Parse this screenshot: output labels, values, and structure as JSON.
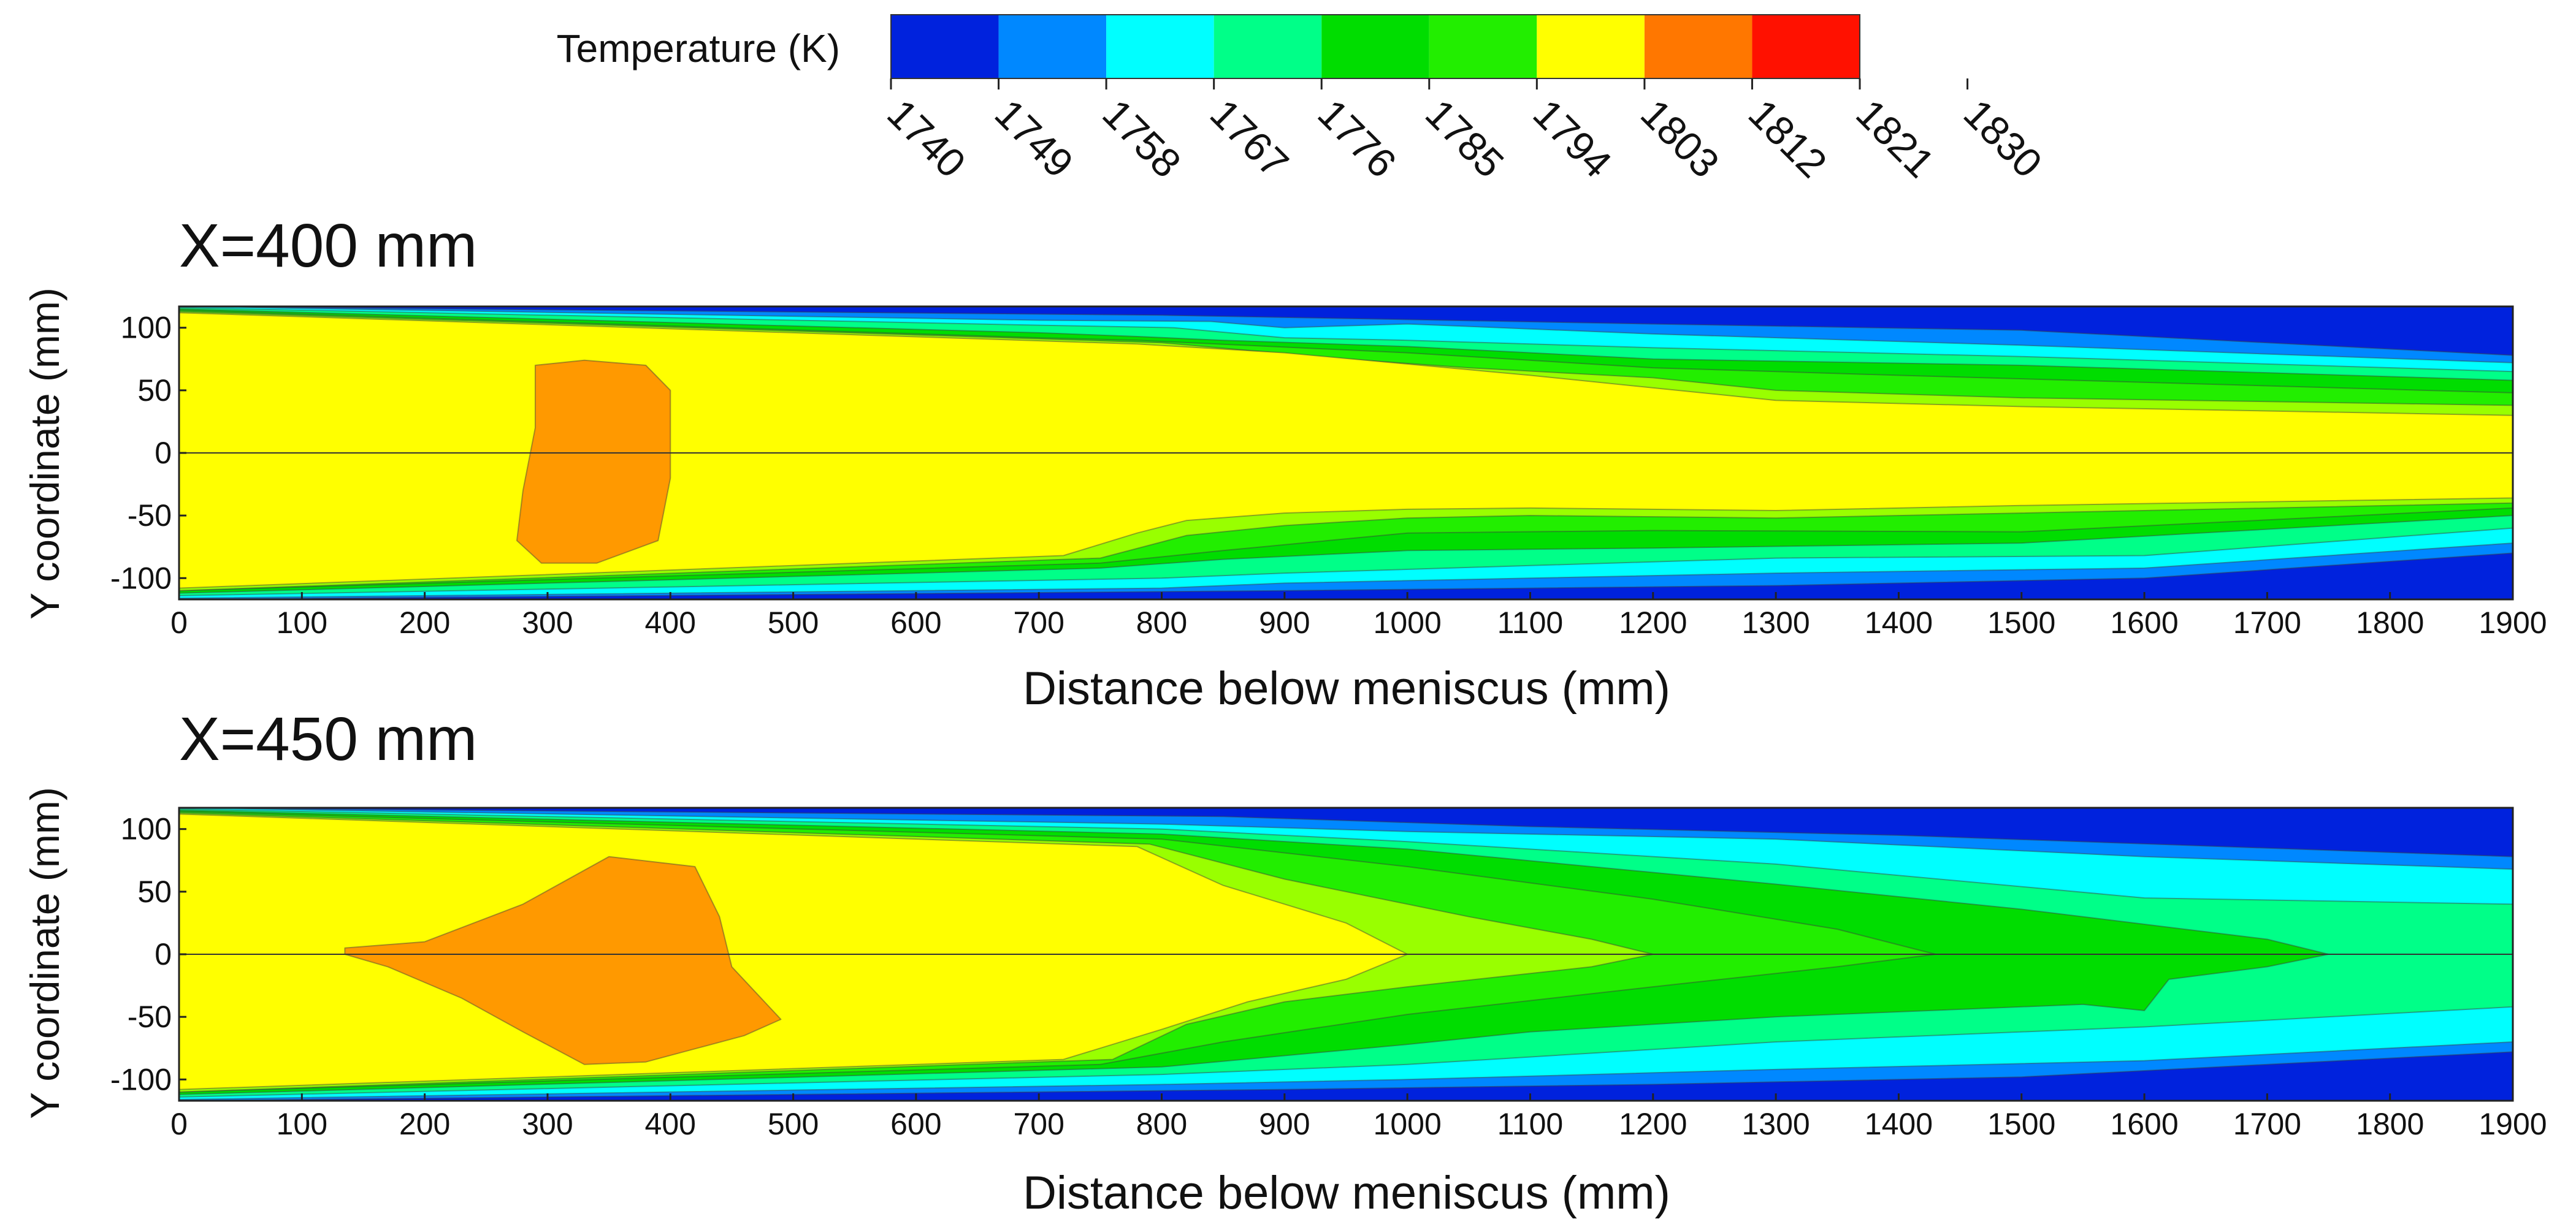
{
  "chart_data": [
    {
      "type": "contour",
      "title": "X=400 mm",
      "xlabel": "Distance below meniscus (mm)",
      "ylabel": "Y coordinate (mm)",
      "xlim": [
        0,
        1900
      ],
      "ylim": [
        -117,
        117
      ],
      "x_ticks": [
        "0",
        "100",
        "200",
        "300",
        "400",
        "500",
        "600",
        "700",
        "800",
        "900",
        "1000",
        "1100",
        "1200",
        "1300",
        "1400",
        "1500",
        "1600",
        "1700",
        "1800",
        "1900"
      ],
      "y_ticks": [
        "100",
        "50",
        "0",
        "-50",
        "-100"
      ],
      "contours": [
        {
          "level": "1740-1749",
          "color": "#0022dd",
          "poly": [
            [
              0,
              117
            ],
            [
              1900,
              117
            ],
            [
              1900,
              -117
            ],
            [
              0,
              -117
            ]
          ]
        },
        {
          "level": "1749-1758",
          "color": "#0088ff",
          "poly": [
            [
              0,
              117
            ],
            [
              800,
              110
            ],
            [
              1200,
              103
            ],
            [
              1500,
              98
            ],
            [
              1900,
              78
            ],
            [
              1900,
              -80
            ],
            [
              1600,
              -100
            ],
            [
              1300,
              -106
            ],
            [
              1100,
              -108
            ],
            [
              900,
              -110
            ],
            [
              0,
              -117
            ]
          ]
        },
        {
          "level": "1758-1767",
          "color": "#00ffff",
          "poly": [
            [
              0,
              117
            ],
            [
              700,
              106
            ],
            [
              840,
              105
            ],
            [
              900,
              100
            ],
            [
              1000,
              103
            ],
            [
              1200,
              95
            ],
            [
              1500,
              86
            ],
            [
              1900,
              72
            ],
            [
              1900,
              -72
            ],
            [
              1600,
              -92
            ],
            [
              1300,
              -96
            ],
            [
              1100,
              -100
            ],
            [
              900,
              -104
            ],
            [
              800,
              -108
            ],
            [
              0,
              -116
            ]
          ]
        },
        {
          "level": "1767-1776",
          "color": "#00ff88",
          "poly": [
            [
              0,
              116
            ],
            [
              700,
              102
            ],
            [
              810,
              100
            ],
            [
              900,
              92
            ],
            [
              1000,
              90
            ],
            [
              1200,
              84
            ],
            [
              1500,
              77
            ],
            [
              1900,
              65
            ],
            [
              1900,
              -60
            ],
            [
              1600,
              -82
            ],
            [
              1300,
              -84
            ],
            [
              1100,
              -90
            ],
            [
              900,
              -96
            ],
            [
              800,
              -100
            ],
            [
              0,
              -114
            ]
          ]
        },
        {
          "level": "1776-1785",
          "color": "#00dd00",
          "poly": [
            [
              0,
              115
            ],
            [
              700,
              96
            ],
            [
              780,
              93
            ],
            [
              850,
              90
            ],
            [
              1000,
              85
            ],
            [
              1200,
              75
            ],
            [
              1500,
              70
            ],
            [
              1900,
              58
            ],
            [
              1900,
              -50
            ],
            [
              1500,
              -72
            ],
            [
              1200,
              -76
            ],
            [
              1000,
              -78
            ],
            [
              850,
              -85
            ],
            [
              750,
              -92
            ],
            [
              0,
              -112
            ]
          ]
        },
        {
          "level": "1785-1794",
          "color": "#22ee00",
          "poly": [
            [
              0,
              114
            ],
            [
              700,
              92
            ],
            [
              780,
              90
            ],
            [
              1000,
              80
            ],
            [
              1200,
              68
            ],
            [
              1400,
              62
            ],
            [
              1900,
              48
            ],
            [
              1900,
              -44
            ],
            [
              1500,
              -63
            ],
            [
              1200,
              -62
            ],
            [
              1000,
              -64
            ],
            [
              850,
              -78
            ],
            [
              750,
              -88
            ],
            [
              0,
              -110
            ]
          ]
        },
        {
          "level": "1794-1803",
          "color": "#99ff00",
          "poly": [
            [
              0,
              113
            ],
            [
              800,
              88
            ],
            [
              950,
              75
            ],
            [
              1050,
              68
            ],
            [
              1200,
              60
            ],
            [
              1300,
              50
            ],
            [
              1500,
              44
            ],
            [
              1900,
              38
            ],
            [
              1900,
              -40
            ],
            [
              1500,
              -48
            ],
            [
              1300,
              -52
            ],
            [
              1100,
              -50
            ],
            [
              1000,
              -52
            ],
            [
              900,
              -58
            ],
            [
              820,
              -66
            ],
            [
              750,
              -84
            ],
            [
              0,
              -110
            ]
          ]
        },
        {
          "level": "1803-1812",
          "color": "#ffff00",
          "poly": [
            [
              0,
              112
            ],
            [
              780,
              87
            ],
            [
              900,
              80
            ],
            [
              1100,
              62
            ],
            [
              1300,
              42
            ],
            [
              1500,
              37
            ],
            [
              1900,
              30
            ],
            [
              1900,
              -36
            ],
            [
              1500,
              -42
            ],
            [
              1300,
              -46
            ],
            [
              1100,
              -44
            ],
            [
              1000,
              -45
            ],
            [
              900,
              -48
            ],
            [
              820,
              -54
            ],
            [
              780,
              -64
            ],
            [
              720,
              -82
            ],
            [
              0,
              -108
            ]
          ]
        },
        {
          "level": "1812-1821",
          "color": "#ff9900",
          "poly": [
            [
              290,
              70
            ],
            [
              330,
              74
            ],
            [
              380,
              70
            ],
            [
              400,
              50
            ],
            [
              400,
              -20
            ],
            [
              390,
              -70
            ],
            [
              340,
              -88
            ],
            [
              295,
              -88
            ],
            [
              275,
              -70
            ],
            [
              280,
              -30
            ],
            [
              290,
              20
            ]
          ]
        }
      ]
    },
    {
      "type": "contour",
      "title": "X=450 mm",
      "xlabel": "Distance below meniscus (mm)",
      "ylabel": "Y coordinate (mm)",
      "xlim": [
        0,
        1900
      ],
      "ylim": [
        -117,
        117
      ],
      "x_ticks": [
        "0",
        "100",
        "200",
        "300",
        "400",
        "500",
        "600",
        "700",
        "800",
        "900",
        "1000",
        "1100",
        "1200",
        "1300",
        "1400",
        "1500",
        "1600",
        "1700",
        "1800",
        "1900"
      ],
      "y_ticks": [
        "100",
        "50",
        "0",
        "-50",
        "-100"
      ],
      "contours": [
        {
          "level": "1740-1749",
          "color": "#0022dd",
          "poly": [
            [
              0,
              117
            ],
            [
              1900,
              117
            ],
            [
              1900,
              -117
            ],
            [
              0,
              -117
            ]
          ]
        },
        {
          "level": "1749-1758",
          "color": "#0088ff",
          "poly": [
            [
              0,
              117
            ],
            [
              850,
              110
            ],
            [
              1100,
              102
            ],
            [
              1400,
              95
            ],
            [
              1900,
              78
            ],
            [
              1900,
              -78
            ],
            [
              1500,
              -98
            ],
            [
              1200,
              -104
            ],
            [
              900,
              -108
            ],
            [
              0,
              -117
            ]
          ]
        },
        {
          "level": "1758-1767",
          "color": "#00ffff",
          "poly": [
            [
              0,
              117
            ],
            [
              800,
              104
            ],
            [
              1000,
              98
            ],
            [
              1300,
              92
            ],
            [
              1600,
              78
            ],
            [
              1900,
              68
            ],
            [
              1900,
              -70
            ],
            [
              1600,
              -85
            ],
            [
              1300,
              -92
            ],
            [
              1000,
              -100
            ],
            [
              800,
              -104
            ],
            [
              0,
              -116
            ]
          ]
        },
        {
          "level": "1767-1776",
          "color": "#00ff88",
          "poly": [
            [
              0,
              116
            ],
            [
              800,
              100
            ],
            [
              1000,
              90
            ],
            [
              1300,
              72
            ],
            [
              1600,
              45
            ],
            [
              1900,
              40
            ],
            [
              1900,
              -42
            ],
            [
              1600,
              -58
            ],
            [
              1300,
              -70
            ],
            [
              1000,
              -88
            ],
            [
              800,
              -96
            ],
            [
              0,
              -114
            ]
          ]
        },
        {
          "level": "1776-1785",
          "color": "#00dd00",
          "poly": [
            [
              0,
              115
            ],
            [
              800,
              96
            ],
            [
              1000,
              84
            ],
            [
              1300,
              56
            ],
            [
              1500,
              36
            ],
            [
              1700,
              12
            ],
            [
              1750,
              0
            ],
            [
              1700,
              -10
            ],
            [
              1620,
              -20
            ],
            [
              1600,
              -45
            ],
            [
              1550,
              -40
            ],
            [
              1300,
              -50
            ],
            [
              1100,
              -62
            ],
            [
              1000,
              -72
            ],
            [
              800,
              -90
            ],
            [
              0,
              -112
            ]
          ]
        },
        {
          "level": "1785-1794",
          "color": "#22ee00",
          "poly": [
            [
              0,
              114
            ],
            [
              800,
              92
            ],
            [
              1000,
              70
            ],
            [
              1200,
              44
            ],
            [
              1350,
              20
            ],
            [
              1430,
              0
            ],
            [
              1350,
              -10
            ],
            [
              1200,
              -26
            ],
            [
              1000,
              -48
            ],
            [
              850,
              -70
            ],
            [
              750,
              -88
            ],
            [
              0,
              -110
            ]
          ]
        },
        {
          "level": "1794-1803",
          "color": "#99ff00",
          "poly": [
            [
              0,
              113
            ],
            [
              790,
              88
            ],
            [
              900,
              60
            ],
            [
              1050,
              30
            ],
            [
              1150,
              12
            ],
            [
              1200,
              0
            ],
            [
              1150,
              -10
            ],
            [
              1000,
              -26
            ],
            [
              900,
              -38
            ],
            [
              820,
              -56
            ],
            [
              760,
              -84
            ],
            [
              0,
              -110
            ]
          ]
        },
        {
          "level": "1803-1812",
          "color": "#ffff00",
          "poly": [
            [
              0,
              112
            ],
            [
              780,
              86
            ],
            [
              850,
              55
            ],
            [
              950,
              25
            ],
            [
              1000,
              0
            ],
            [
              950,
              -20
            ],
            [
              870,
              -38
            ],
            [
              800,
              -60
            ],
            [
              720,
              -84
            ],
            [
              0,
              -108
            ]
          ]
        },
        {
          "level": "1812-1821",
          "color": "#ff9900",
          "poly": [
            [
              135,
              5
            ],
            [
              200,
              10
            ],
            [
              280,
              40
            ],
            [
              350,
              78
            ],
            [
              420,
              70
            ],
            [
              440,
              30
            ],
            [
              450,
              -10
            ],
            [
              490,
              -52
            ],
            [
              460,
              -65
            ],
            [
              380,
              -86
            ],
            [
              330,
              -88
            ],
            [
              280,
              -62
            ],
            [
              230,
              -35
            ],
            [
              170,
              -10
            ],
            [
              135,
              0
            ]
          ]
        }
      ]
    }
  ],
  "colorbar": {
    "title": "Temperature (K)",
    "ticks": [
      "1740",
      "1749",
      "1758",
      "1767",
      "1776",
      "1785",
      "1794",
      "1803",
      "1812",
      "1821",
      "1830"
    ],
    "colors": [
      "#0022dd",
      "#0088ff",
      "#00ffff",
      "#00ff88",
      "#00dd00",
      "#22ee00",
      "#ffff00",
      "#ff7700",
      "#ff1100"
    ]
  }
}
